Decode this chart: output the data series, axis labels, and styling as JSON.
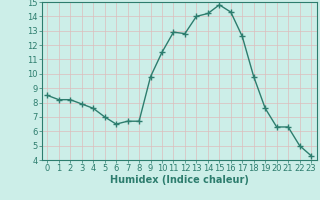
{
  "x": [
    0,
    1,
    2,
    3,
    4,
    5,
    6,
    7,
    8,
    9,
    10,
    11,
    12,
    13,
    14,
    15,
    16,
    17,
    18,
    19,
    20,
    21,
    22,
    23
  ],
  "y": [
    8.5,
    8.2,
    8.2,
    7.9,
    7.6,
    7.0,
    6.5,
    6.7,
    6.7,
    9.8,
    11.5,
    12.9,
    12.8,
    14.0,
    14.2,
    14.8,
    14.3,
    12.6,
    9.8,
    7.6,
    6.3,
    6.3,
    5.0,
    4.3
  ],
  "line_color": "#2d7d6e",
  "marker": "+",
  "markersize": 4,
  "linewidth": 1.0,
  "markeredgewidth": 1.0,
  "xlabel": "Humidex (Indice chaleur)",
  "xlim": [
    -0.5,
    23.5
  ],
  "ylim": [
    4,
    15
  ],
  "yticks": [
    4,
    5,
    6,
    7,
    8,
    9,
    10,
    11,
    12,
    13,
    14,
    15
  ],
  "xticks": [
    0,
    1,
    2,
    3,
    4,
    5,
    6,
    7,
    8,
    9,
    10,
    11,
    12,
    13,
    14,
    15,
    16,
    17,
    18,
    19,
    20,
    21,
    22,
    23
  ],
  "bg_color": "#cceee8",
  "grid_color": "#ddbcbc",
  "tick_fontsize": 6,
  "xlabel_fontsize": 7,
  "xlabel_bold": true,
  "tick_color": "#2d7d6e",
  "spine_color": "#2d7d6e"
}
